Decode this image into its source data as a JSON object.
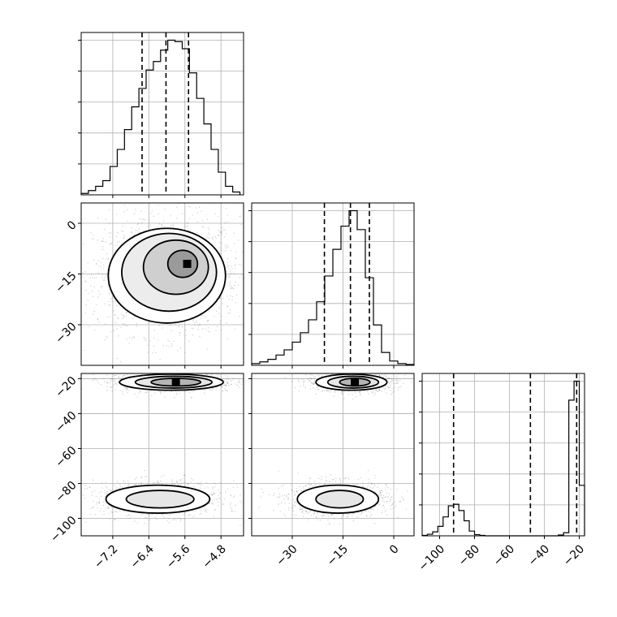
{
  "chart_data": {
    "type": "corner",
    "title": "",
    "grid": true,
    "parameters": [
      {
        "label": "",
        "range": [
          -7.9,
          -4.3
        ],
        "ticks": [
          -7.2,
          -6.4,
          -5.6,
          -4.8
        ],
        "tick_labels": [
          "−7.2",
          "−6.4",
          "−5.6",
          "−4.8"
        ]
      },
      {
        "label": "",
        "range": [
          -42,
          6
        ],
        "ticks": [
          -30,
          -15,
          0
        ],
        "tick_labels": [
          "−30",
          "−15",
          "0"
        ]
      },
      {
        "label": "",
        "range": [
          -110,
          -17
        ],
        "ticks": [
          -100,
          -80,
          -60,
          -40,
          -20
        ],
        "tick_labels": [
          "−100",
          "−80",
          "−60",
          "−40",
          "−20"
        ]
      }
    ],
    "diagonal": [
      {
        "parameter": 0,
        "quantiles": [
          -6.55,
          -6.02,
          -5.52
        ],
        "bin_edges": [
          -7.9,
          -7.74,
          -7.58,
          -7.42,
          -7.26,
          -7.1,
          -6.94,
          -6.78,
          -6.62,
          -6.46,
          -6.3,
          -6.14,
          -5.98,
          -5.82,
          -5.66,
          -5.5,
          -5.34,
          -5.18,
          -5.02,
          -4.86,
          -4.7,
          -4.54,
          -4.38
        ],
        "counts": [
          1,
          3,
          6,
          10,
          20,
          32,
          46,
          62,
          75,
          88,
          94,
          102,
          109,
          108,
          103,
          86,
          68,
          50,
          32,
          16,
          6,
          2
        ]
      },
      {
        "parameter": 1,
        "quantiles": [
          -20.5,
          -12.8,
          -7.2
        ],
        "bin_edges": [
          -42,
          -39.6,
          -37.2,
          -34.8,
          -32.4,
          -30,
          -27.6,
          -25.2,
          -22.8,
          -20.4,
          -18,
          -15.6,
          -13.2,
          -10.8,
          -8.4,
          -6,
          -3.6,
          -1.2,
          1.2,
          3.6,
          6
        ],
        "counts": [
          2,
          4,
          7,
          12,
          18,
          27,
          38,
          53,
          74,
          104,
          135,
          162,
          180,
          158,
          102,
          47,
          15,
          5,
          2,
          1
        ]
      },
      {
        "parameter": 2,
        "quantiles": [
          -92,
          -48,
          -21.5
        ],
        "bin_edges": [
          -110,
          -107,
          -104,
          -101,
          -98,
          -95,
          -92,
          -89,
          -86,
          -83,
          -80,
          -77,
          -74,
          -71,
          -68,
          -65,
          -62,
          -59,
          -56,
          -53,
          -50,
          -47,
          -44,
          -41,
          -38,
          -35,
          -32,
          -29,
          -26,
          -23,
          -20,
          -17
        ],
        "counts": [
          0.5,
          2,
          5,
          12,
          24,
          38,
          40,
          32,
          19,
          6,
          1.5,
          0.5,
          0,
          0,
          0,
          0,
          0,
          0,
          0,
          0,
          0,
          0,
          0,
          0,
          0,
          0,
          1,
          4,
          172,
          196,
          64
        ]
      }
    ],
    "off_diagonal": [
      {
        "x_parameter": 0,
        "y_parameter": 1,
        "points_density": "single cloud",
        "peak": [
          -5.55,
          -12
        ],
        "contour_levels": [
          {
            "center": [
              -5.65,
              -12
            ],
            "rx": 0.33,
            "ry": 4.0
          },
          {
            "center": [
              -5.8,
              -13
            ],
            "rx": 0.72,
            "ry": 8.0
          },
          {
            "center": [
              -5.95,
              -14.5
            ],
            "rx": 1.05,
            "ry": 11.5
          },
          {
            "center": [
              -6.0,
              -15.5
            ],
            "rx": 1.3,
            "ry": 14.0
          }
        ]
      },
      {
        "x_parameter": 0,
        "y_parameter": 2,
        "points_density": "two clouds",
        "peak": [
          -5.8,
          -22
        ],
        "contour_levels": [
          {
            "center": [
              -5.8,
              -22
            ],
            "rx": 0.55,
            "ry": 2.2
          },
          {
            "center": [
              -5.85,
              -22
            ],
            "rx": 0.85,
            "ry": 3.4
          },
          {
            "center": [
              -5.9,
              -22
            ],
            "rx": 1.15,
            "ry": 4.6
          },
          {
            "center": [
              -6.15,
              -89
            ],
            "rx": 0.75,
            "ry": 5.0
          },
          {
            "center": [
              -6.2,
              -89
            ],
            "rx": 1.15,
            "ry": 8.0
          }
        ]
      },
      {
        "x_parameter": 1,
        "y_parameter": 2,
        "points_density": "two clouds",
        "peak": [
          -11.5,
          -22
        ],
        "contour_levels": [
          {
            "center": [
              -11.5,
              -22
            ],
            "rx": 4.5,
            "ry": 2.2
          },
          {
            "center": [
              -12,
              -22
            ],
            "rx": 7.5,
            "ry": 3.4
          },
          {
            "center": [
              -12.5,
              -22
            ],
            "rx": 10.5,
            "ry": 4.6
          },
          {
            "center": [
              -16,
              -89
            ],
            "rx": 7.0,
            "ry": 5.0
          },
          {
            "center": [
              -16.5,
              -89
            ],
            "rx": 12.0,
            "ry": 8.0
          }
        ]
      }
    ]
  }
}
